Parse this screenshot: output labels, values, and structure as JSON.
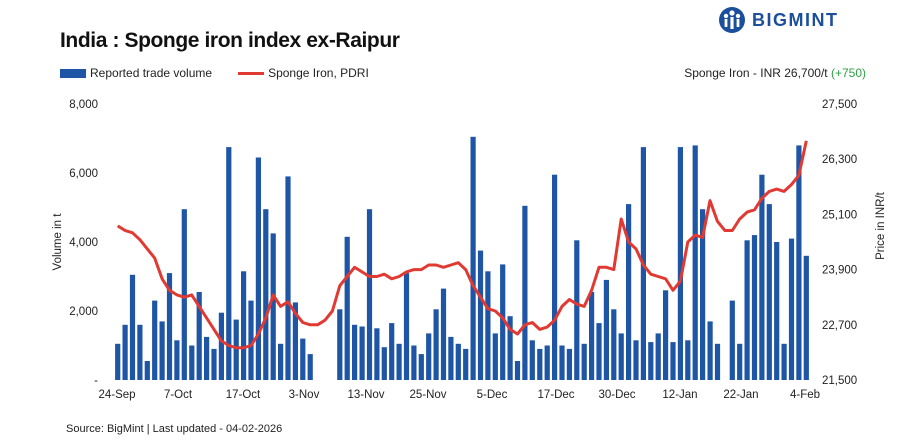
{
  "header": {
    "title": "India : Sponge iron index ex-Raipur",
    "logo_text": "BIGMINT",
    "logo_icon": "bigmint-logo-icon"
  },
  "legend": {
    "bar_label": "Reported trade volume",
    "line_label": "Sponge Iron, PDRI"
  },
  "price_note": {
    "text": "Sponge Iron - INR 26,700/t",
    "change": "(+750)"
  },
  "footer": {
    "source": "Source: BigMint | Last updated - 04-02-2026"
  },
  "colors": {
    "bar": "#1f55a5",
    "line": "#e03a33",
    "change_positive": "#2ea043",
    "logo": "#1b4f9c"
  },
  "chart_data": {
    "type": "bar",
    "combo": "bar + line (dual axis)",
    "x_tick_labels": [
      "24-Sep",
      "7-Oct",
      "17-Oct",
      "3-Nov",
      "13-Nov",
      "25-Nov",
      "5-Dec",
      "17-Dec",
      "30-Dec",
      "12-Jan",
      "22-Jan",
      "4-Feb"
    ],
    "y_left": {
      "label": "Volume in t",
      "ticks": [
        "-",
        "2,000",
        "4,000",
        "6,000",
        "8,000"
      ],
      "min": 0,
      "max": 8000
    },
    "y_right": {
      "label": "Price in INR/t",
      "ticks": [
        "21,500",
        "22,700",
        "23,900",
        "25,100",
        "26,300",
        "27,500"
      ],
      "min": 21500,
      "max": 27500
    },
    "grid": false,
    "legend_position": "top-left",
    "series": [
      {
        "name": "Reported trade volume",
        "type": "bar",
        "axis": "left",
        "values": [
          1050,
          1600,
          3050,
          1600,
          550,
          2300,
          1700,
          3100,
          1150,
          4950,
          1000,
          2550,
          1250,
          900,
          1950,
          6750,
          1750,
          3150,
          2300,
          6450,
          4950,
          4250,
          1050,
          5900,
          2250,
          1200,
          750,
          0,
          0,
          0,
          2050,
          4150,
          1600,
          1550,
          4950,
          1500,
          950,
          1650,
          1050,
          3100,
          1000,
          750,
          1350,
          2050,
          2650,
          1250,
          1050,
          900,
          7050,
          3750,
          3150,
          1350,
          3350,
          1850,
          550,
          5050,
          1150,
          900,
          1000,
          5950,
          1000,
          900,
          4050,
          1050,
          2550,
          1650,
          2900,
          2050,
          1350,
          5100,
          1150,
          6750,
          1100,
          1350,
          2600,
          1100,
          6750,
          1150,
          6800,
          4950,
          1700,
          1050,
          0,
          2300,
          1050,
          4050,
          4200,
          5950,
          5100,
          4000,
          1050,
          4100,
          6800,
          3600
        ]
      },
      {
        "name": "Sponge Iron, PDRI",
        "type": "line",
        "axis": "right",
        "values": [
          24850,
          24750,
          24700,
          24550,
          24350,
          24150,
          23700,
          23450,
          23350,
          23300,
          23350,
          23100,
          22850,
          22600,
          22350,
          22250,
          22200,
          22200,
          22250,
          22500,
          22850,
          23350,
          23100,
          23200,
          22950,
          22750,
          22700,
          22700,
          22800,
          23000,
          23550,
          23750,
          23950,
          23850,
          23750,
          23750,
          23800,
          23700,
          23750,
          23850,
          23900,
          23900,
          24000,
          24000,
          23950,
          24000,
          24050,
          23900,
          23550,
          23300,
          23050,
          23000,
          22850,
          22600,
          22500,
          22700,
          22750,
          22600,
          22650,
          22800,
          23100,
          23250,
          23150,
          23100,
          23450,
          23950,
          23950,
          23900,
          25000,
          24500,
          24350,
          24000,
          23800,
          23750,
          23700,
          23450,
          23650,
          24500,
          24650,
          24600,
          25400,
          24950,
          24750,
          24750,
          25000,
          25150,
          25200,
          25450,
          25600,
          25650,
          25600,
          25750,
          25950,
          26700
        ]
      }
    ]
  }
}
